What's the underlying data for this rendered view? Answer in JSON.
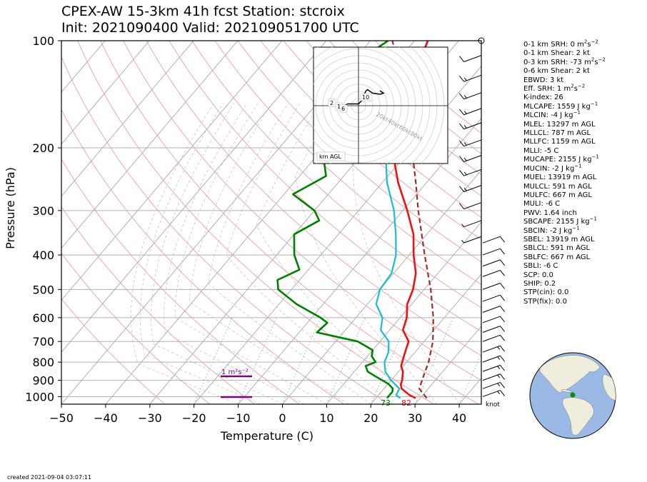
{
  "title": {
    "line1": "CPEX-AW 15-3km  41h fcst  Station: stcroix",
    "line2": "Init: 2021090400  Valid: 202109051700 UTC"
  },
  "chart_data": {
    "type": "skew-t",
    "xlabel": "Temperature (C)",
    "ylabel": "Pressure (hPa)",
    "xlim": [
      -50,
      45
    ],
    "ylim": [
      1050,
      100
    ],
    "yscale": "log",
    "grid": true,
    "xticks": [
      "−50",
      "−40",
      "−30",
      "−20",
      "−10",
      "0",
      "10",
      "20",
      "30",
      "40"
    ],
    "yticks": [
      {
        "p": 100,
        "label": "100"
      },
      {
        "p": 200,
        "label": "200"
      },
      {
        "p": 300,
        "label": "300"
      },
      {
        "p": 400,
        "label": "400"
      },
      {
        "p": 500,
        "label": "500"
      },
      {
        "p": 600,
        "label": "600"
      },
      {
        "p": 700,
        "label": "700"
      },
      {
        "p": 800,
        "label": "800"
      },
      {
        "p": 900,
        "label": "900"
      },
      {
        "p": 1000,
        "label": "1000"
      }
    ],
    "temperature": {
      "color": "#ee1111",
      "points": [
        [
          1010,
          29
        ],
        [
          990,
          27
        ],
        [
          950,
          24
        ],
        [
          925,
          23
        ],
        [
          900,
          22.5
        ],
        [
          850,
          21
        ],
        [
          820,
          19.5
        ],
        [
          780,
          18.5
        ],
        [
          740,
          17.5
        ],
        [
          700,
          16.5
        ],
        [
          650,
          13
        ],
        [
          600,
          11.5
        ],
        [
          550,
          9
        ],
        [
          500,
          7.5
        ],
        [
          450,
          5
        ],
        [
          400,
          1
        ],
        [
          350,
          -3
        ],
        [
          300,
          -9
        ],
        [
          250,
          -16.5
        ],
        [
          200,
          -24.5
        ],
        [
          170,
          -29
        ],
        [
          140,
          -32
        ],
        [
          120,
          -34
        ],
        [
          100,
          -37
        ]
      ]
    },
    "dewpoint": {
      "color": "#17becf",
      "points": [
        [
          1010,
          25.5
        ],
        [
          990,
          24
        ],
        [
          950,
          23.5
        ],
        [
          900,
          20
        ],
        [
          850,
          17
        ],
        [
          800,
          15
        ],
        [
          750,
          14
        ],
        [
          700,
          12
        ],
        [
          650,
          8
        ],
        [
          600,
          6
        ],
        [
          550,
          2
        ],
        [
          500,
          0
        ],
        [
          450,
          -0.5
        ],
        [
          400,
          -3
        ],
        [
          350,
          -7
        ],
        [
          300,
          -12
        ],
        [
          250,
          -19
        ],
        [
          200,
          -26
        ],
        [
          170,
          -30
        ],
        [
          140,
          -32.5
        ],
        [
          120,
          -34.5
        ],
        [
          100,
          -37
        ]
      ]
    },
    "dewpoint2": {
      "color": "#008000",
      "points": [
        [
          1010,
          22.5
        ],
        [
          970,
          22.5
        ],
        [
          950,
          22
        ],
        [
          920,
          20
        ],
        [
          880,
          16
        ],
        [
          850,
          13
        ],
        [
          820,
          11.5
        ],
        [
          800,
          13
        ],
        [
          770,
          11
        ],
        [
          740,
          10
        ],
        [
          700,
          5
        ],
        [
          660,
          -6
        ],
        [
          620,
          -5.5
        ],
        [
          600,
          -8
        ],
        [
          550,
          -16
        ],
        [
          500,
          -23
        ],
        [
          470,
          -25
        ],
        [
          440,
          -22
        ],
        [
          400,
          -26
        ],
        [
          350,
          -30
        ],
        [
          320,
          -27
        ],
        [
          300,
          -30
        ],
        [
          270,
          -38
        ],
        [
          240,
          -34
        ],
        [
          220,
          -37
        ],
        [
          200,
          -40
        ],
        [
          180,
          -38
        ],
        [
          150,
          -46
        ],
        [
          120,
          -50
        ],
        [
          100,
          -46
        ]
      ]
    },
    "parcel": {
      "color": "#a52a2a",
      "points": [
        [
          1010,
          31.5
        ],
        [
          950,
          28
        ],
        [
          900,
          27
        ],
        [
          850,
          26
        ],
        [
          800,
          25
        ],
        [
          700,
          22
        ],
        [
          600,
          17.5
        ],
        [
          500,
          11.5
        ],
        [
          400,
          3.5
        ],
        [
          300,
          -6.5
        ],
        [
          250,
          -12.5
        ],
        [
          200,
          -20
        ],
        [
          150,
          -30
        ],
        [
          100,
          -45
        ]
      ]
    },
    "surface_labels": {
      "temperature": "82",
      "dewpoint": "73"
    },
    "srh_annotation": "1 m²s⁻²",
    "wind_units_label": "knot",
    "hodograph": {
      "range_labels": [
        "20kt",
        "40kt",
        "60kt",
        "80kt"
      ],
      "height_labels": [
        "2",
        "1",
        "6",
        "10"
      ],
      "legend": "km AGL",
      "points": [
        [
          -5,
          -1
        ],
        [
          -4,
          0
        ],
        [
          -3,
          0.5
        ],
        [
          -2,
          0.5
        ],
        [
          -1,
          0.5
        ],
        [
          0,
          0.5
        ],
        [
          1,
          1.5
        ],
        [
          2,
          4
        ],
        [
          2.5,
          4.5
        ],
        [
          4,
          3.5
        ],
        [
          6,
          3.2
        ],
        [
          7,
          3.5
        ],
        [
          6,
          4.2
        ]
      ]
    },
    "wind_barbs": {
      "upper": [
        [
          110,
          12
        ],
        [
          125,
          15
        ],
        [
          140,
          14
        ],
        [
          155,
          15
        ],
        [
          170,
          16
        ],
        [
          190,
          17
        ],
        [
          210,
          16
        ],
        [
          230,
          15
        ],
        [
          255,
          13
        ],
        [
          285,
          10
        ],
        [
          320,
          6
        ],
        [
          355,
          5
        ]
      ],
      "lower": [
        [
          370,
          8
        ],
        [
          400,
          9
        ],
        [
          430,
          8
        ],
        [
          460,
          9
        ],
        [
          500,
          10
        ],
        [
          540,
          11
        ],
        [
          580,
          10
        ],
        [
          620,
          11
        ],
        [
          660,
          12
        ],
        [
          700,
          12
        ],
        [
          750,
          13
        ],
        [
          800,
          13
        ],
        [
          850,
          14
        ],
        [
          900,
          14
        ],
        [
          950,
          15
        ],
        [
          1000,
          16
        ]
      ]
    }
  },
  "stats": [
    {
      "pre": "0-1 km SRH: 0 m",
      "sup": "2",
      "mid": "s",
      "sup2": "−2"
    },
    {
      "pre": "0-1 km Shear: 2 kt"
    },
    {
      "pre": "0-3 km SRH: -73 m",
      "sup": "2",
      "mid": "s",
      "sup2": "−2"
    },
    {
      "pre": "0-6 km Shear: 2 kt"
    },
    {
      "pre": "EBWD: 3 kt"
    },
    {
      "pre": "Eff. SRH: 1 m",
      "sup": "2",
      "mid": "s",
      "sup2": "−2"
    },
    {
      "pre": "K-index: 26"
    },
    {
      "pre": "MLCAPE: 1559 J kg",
      "sup": "−1"
    },
    {
      "pre": "MLCIN: -4 J kg",
      "sup": "−1"
    },
    {
      "pre": "MLEL: 13297 m AGL"
    },
    {
      "pre": "MLLCL: 787 m AGL"
    },
    {
      "pre": "MLLFC: 1159 m AGL"
    },
    {
      "pre": "MLLI: -5 C"
    },
    {
      "pre": "MUCAPE: 2155 J kg",
      "sup": "−1"
    },
    {
      "pre": "MUCIN: -2 J kg",
      "sup": "−1"
    },
    {
      "pre": "MUEL: 13919 m AGL"
    },
    {
      "pre": "MULCL: 591 m AGL"
    },
    {
      "pre": "MULFC: 667 m AGL"
    },
    {
      "pre": "MULI: -6 C"
    },
    {
      "pre": "PWV: 1.64 inch"
    },
    {
      "pre": "SBCAPE: 2155 J kg",
      "sup": "−1"
    },
    {
      "pre": "SBCIN: -2 J kg",
      "sup": "−1"
    },
    {
      "pre": "SBEL: 13919 m AGL"
    },
    {
      "pre": "SBLCL: 591 m AGL"
    },
    {
      "pre": "SBLFC: 667 m AGL"
    },
    {
      "pre": "SBLI: -6 C"
    },
    {
      "pre": "SCP: 0.0"
    },
    {
      "pre": "SHIP: 0.2"
    },
    {
      "pre": "STP(cin): 0.0"
    },
    {
      "pre": "STP(fix): 0.0"
    }
  ],
  "created": "created 2021-09-04 03:07:11",
  "colors": {
    "ocean": "#9ab9e4",
    "land": "#efeedd",
    "station": "#0a8a0a",
    "srh_bar": "#800080"
  }
}
